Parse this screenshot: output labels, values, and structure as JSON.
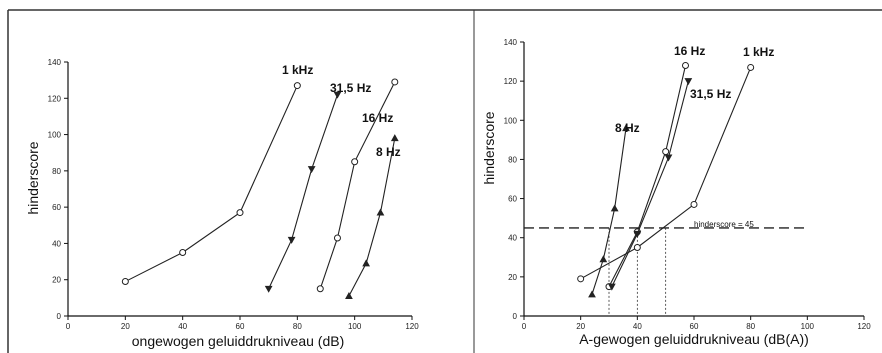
{
  "chart_data": [
    {
      "type": "line",
      "xlabel": "ongewogen geluiddrukniveau (dB)",
      "ylabel": "hinderscore",
      "xlim": [
        0,
        120
      ],
      "ylim": [
        0,
        140
      ],
      "xticks": [
        "0",
        "20",
        "40",
        "60",
        "80",
        "100",
        "120"
      ],
      "yticks": [
        "0",
        "20",
        "40",
        "60",
        "80",
        "100",
        "120",
        "140"
      ],
      "series": [
        {
          "name": "1 kHz",
          "marker": "circle",
          "x": [
            20,
            40,
            60,
            80
          ],
          "y": [
            19,
            35,
            57,
            127
          ]
        },
        {
          "name": "31,5 Hz",
          "marker": "triangle-down",
          "x": [
            70,
            78,
            85,
            94
          ],
          "y": [
            15,
            42,
            81,
            122
          ]
        },
        {
          "name": "16 Hz",
          "marker": "circle",
          "x": [
            88,
            94,
            100,
            114
          ],
          "y": [
            15,
            43,
            85,
            129
          ]
        },
        {
          "name": "8 Hz",
          "marker": "triangle",
          "x": [
            98,
            104,
            109,
            114
          ],
          "y": [
            11,
            29,
            57,
            98
          ]
        }
      ]
    },
    {
      "type": "line",
      "xlabel": "A-gewogen geluiddrukniveau (dB(A))",
      "ylabel": "hinderscore",
      "xlim": [
        0,
        120
      ],
      "ylim": [
        0,
        140
      ],
      "xticks": [
        "0",
        "20",
        "40",
        "60",
        "80",
        "100",
        "120"
      ],
      "yticks": [
        "0",
        "20",
        "40",
        "60",
        "80",
        "100",
        "120",
        "140"
      ],
      "series": [
        {
          "name": "8 Hz",
          "marker": "triangle",
          "x": [
            24,
            28,
            32,
            36
          ],
          "y": [
            11,
            29,
            55,
            96
          ]
        },
        {
          "name": "16 Hz",
          "marker": "circle",
          "x": [
            30,
            40,
            50,
            57
          ],
          "y": [
            15,
            43,
            84,
            128
          ]
        },
        {
          "name": "31,5 Hz",
          "marker": "triangle-down",
          "x": [
            31,
            40,
            51,
            58
          ],
          "y": [
            15,
            42,
            81,
            120
          ]
        },
        {
          "name": "1 kHz",
          "marker": "circle",
          "x": [
            20,
            40,
            60,
            80
          ],
          "y": [
            19,
            35,
            57,
            127
          ]
        }
      ],
      "annotations": {
        "hline": {
          "y": 45,
          "label": "hinderscore = 45"
        },
        "vlines": [
          30,
          40,
          50
        ]
      }
    }
  ]
}
